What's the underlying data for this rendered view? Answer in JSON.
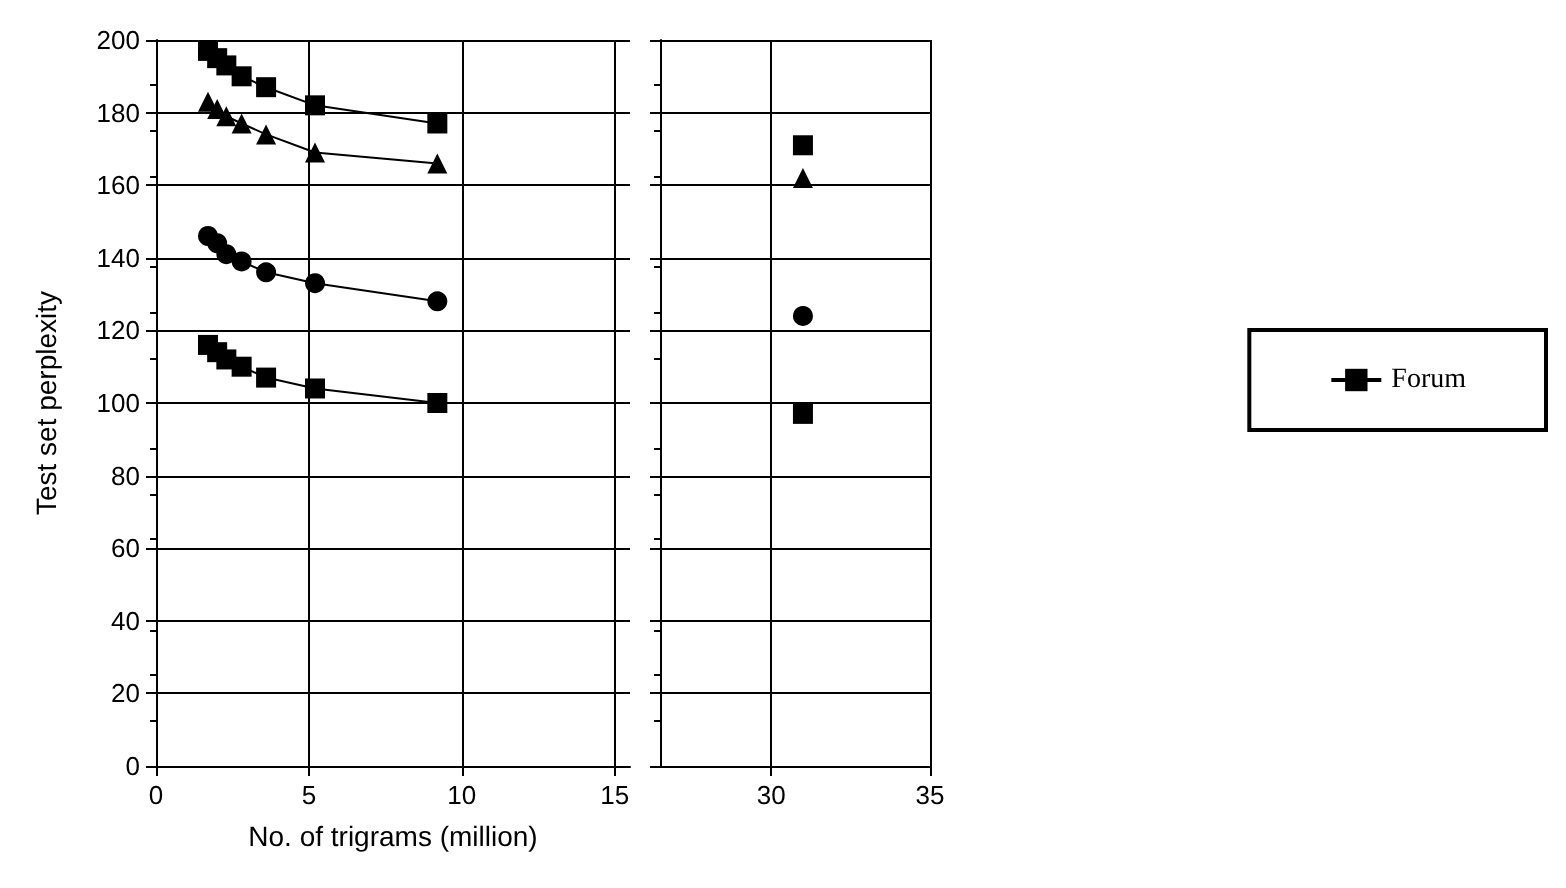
{
  "chart_data": [
    {
      "type": "line",
      "ylabel": "Test set perplexity",
      "xlabel": "No. of trigrams (million)",
      "xlim": [
        0,
        15.5
      ],
      "xticks": [
        0,
        5,
        10,
        15
      ],
      "ylim": [
        0,
        200
      ],
      "yticks": [
        0,
        20,
        40,
        60,
        80,
        100,
        120,
        140,
        160,
        180,
        200
      ],
      "grid": true,
      "legend": false,
      "series": [
        {
          "color": "#000000",
          "marker": "square",
          "x": [
            1.7,
            2.0,
            2.3,
            2.8,
            3.6,
            5.2,
            9.2
          ],
          "values": [
            116,
            114,
            112,
            110,
            107,
            104,
            100
          ]
        },
        {
          "color": "#000000",
          "marker": "circle",
          "x": [
            1.7,
            2.0,
            2.3,
            2.8,
            3.6,
            5.2,
            9.2
          ],
          "values": [
            146,
            144,
            141,
            139,
            136,
            133,
            128
          ]
        },
        {
          "color": "#000000",
          "marker": "triangle",
          "x": [
            1.7,
            2.0,
            2.3,
            2.8,
            3.6,
            5.2,
            9.2
          ],
          "values": [
            183,
            181,
            179,
            177,
            174,
            169,
            166
          ]
        },
        {
          "color": "#000000",
          "marker": "square",
          "x": [
            1.7,
            2.0,
            2.3,
            2.8,
            3.6,
            5.2,
            9.2
          ],
          "values": [
            197,
            195,
            193,
            190,
            187,
            182,
            177
          ]
        }
      ]
    },
    {
      "type": "line",
      "xlim": [
        26.5,
        35
      ],
      "xticks": [
        30,
        35
      ],
      "ylim": [
        0,
        200
      ],
      "yticks": [
        0,
        20,
        40,
        60,
        80,
        100,
        120,
        140,
        160,
        180,
        200
      ],
      "grid": true,
      "tick_labels": "x",
      "legend": "right",
      "series": [
        {
          "color": "#000000",
          "marker": "square",
          "x": [
            31
          ],
          "values": [
            97
          ]
        },
        {
          "color": "#000000",
          "marker": "circle",
          "x": [
            31
          ],
          "values": [
            124
          ]
        },
        {
          "color": "#000000",
          "marker": "triangle",
          "x": [
            31
          ],
          "values": [
            162
          ]
        },
        {
          "name": "Forum",
          "color": "#000000",
          "marker": "square",
          "x": [
            31
          ],
          "values": [
            171
          ]
        }
      ]
    }
  ]
}
